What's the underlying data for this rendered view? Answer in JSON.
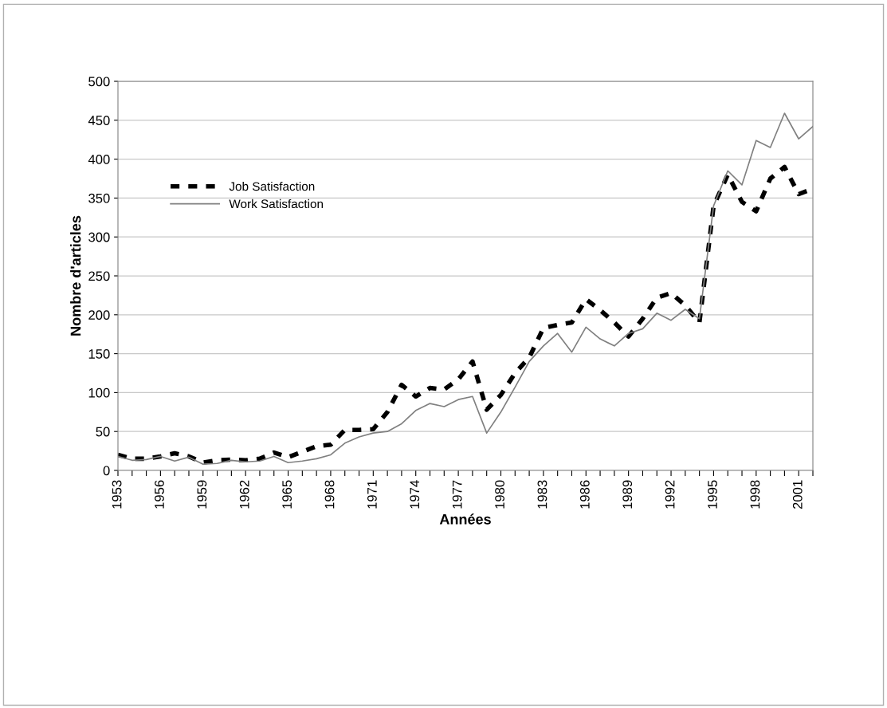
{
  "chart_data": {
    "type": "line",
    "xlabel": "Années",
    "ylabel": "Nombre d'articles",
    "categories": [
      "1953",
      null,
      null,
      "1956",
      null,
      null,
      "1959",
      null,
      null,
      "1962",
      null,
      null,
      "1965",
      null,
      null,
      "1968",
      null,
      null,
      "1971",
      null,
      null,
      "1974",
      null,
      null,
      "1977",
      null,
      null,
      "1980",
      null,
      null,
      "1983",
      null,
      null,
      "1986",
      null,
      null,
      "1989",
      null,
      null,
      "1992",
      null,
      null,
      "1995",
      null,
      null,
      "1998",
      null,
      null,
      "2001",
      null
    ],
    "series": [
      {
        "name": "Job Satisfaction",
        "color": "#000000",
        "line_style": "dashed",
        "values": [
          20,
          15,
          15,
          18,
          22,
          18,
          10,
          13,
          14,
          13,
          15,
          23,
          17,
          24,
          31,
          33,
          52,
          52,
          53,
          75,
          110,
          95,
          106,
          104,
          117,
          140,
          78,
          97,
          125,
          145,
          183,
          187,
          190,
          220,
          206,
          190,
          172,
          195,
          222,
          228,
          212,
          190,
          340,
          380,
          345,
          333,
          375,
          390,
          355,
          362
        ]
      },
      {
        "name": "Work Satisfaction",
        "color": "#808080",
        "line_style": "solid",
        "values": [
          18,
          13,
          14,
          18,
          12,
          17,
          8,
          9,
          13,
          11,
          12,
          18,
          10,
          12,
          15,
          20,
          35,
          43,
          48,
          50,
          60,
          77,
          86,
          82,
          91,
          95,
          48,
          75,
          107,
          140,
          160,
          176,
          152,
          184,
          169,
          160,
          176,
          182,
          202,
          193,
          207,
          195,
          340,
          385,
          367,
          424,
          415,
          459,
          426,
          442
        ]
      }
    ],
    "ylim": [
      0,
      500
    ],
    "yticks": [
      0,
      50,
      100,
      150,
      200,
      250,
      300,
      350,
      400,
      450,
      500
    ],
    "grid": "y",
    "legend": "top left",
    "marker": "none"
  }
}
